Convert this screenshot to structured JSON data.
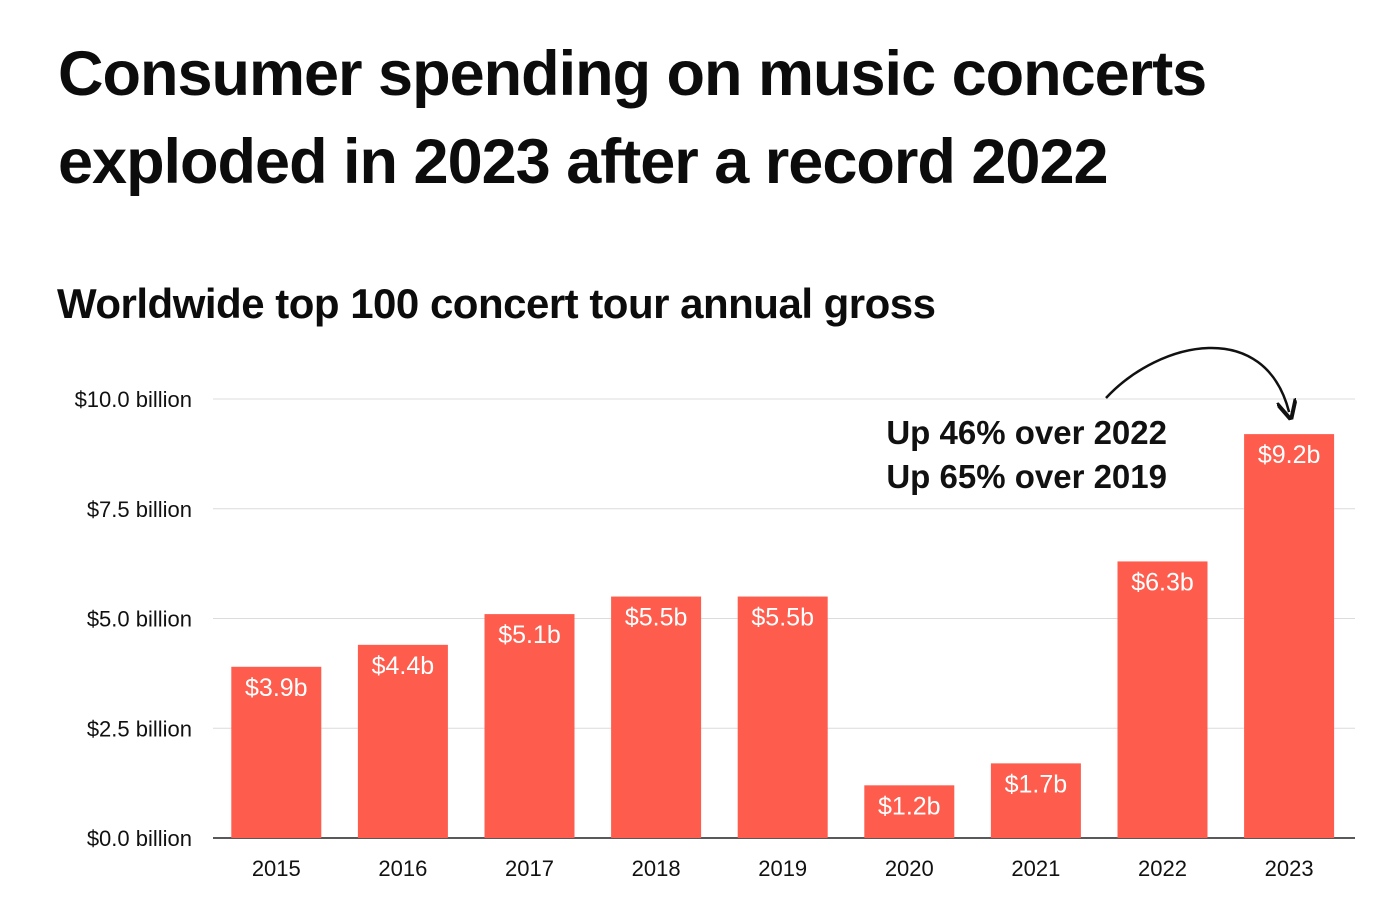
{
  "headline": "Consumer spending on music concerts exploded in 2023 after a record 2022",
  "chart_data": {
    "type": "bar",
    "title": "Worldwide top 100 concert tour annual gross",
    "xlabel": "",
    "ylabel": "",
    "categories": [
      "2015",
      "2016",
      "2017",
      "2018",
      "2019",
      "2020",
      "2021",
      "2022",
      "2023"
    ],
    "values": [
      3.9,
      4.4,
      5.1,
      5.5,
      5.5,
      1.2,
      1.7,
      6.3,
      9.2
    ],
    "data_labels": [
      "$3.9b",
      "$4.4b",
      "$5.1b",
      "$5.5b",
      "$5.5b",
      "$1.2b",
      "$1.7b",
      "$6.3b",
      "$9.2b"
    ],
    "ylim": [
      0,
      10
    ],
    "y_ticks": [
      0,
      2.5,
      5,
      7.5,
      10
    ],
    "y_tick_labels": [
      "$0.0 billion",
      "$2.5 billion",
      "$5.0 billion",
      "$7.5 billion",
      "$10.0 billion"
    ],
    "grid": true,
    "legend": "none",
    "bar_color": "#fe5c4d",
    "annotation": {
      "lines": [
        "Up 46% over 2022",
        "Up 65% over 2019"
      ],
      "target_category": "2023"
    }
  }
}
